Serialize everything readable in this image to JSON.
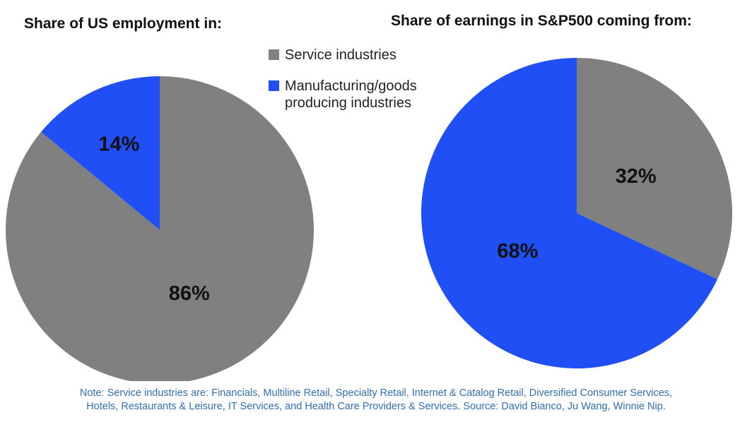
{
  "colors": {
    "service": "#808080",
    "manufacturing": "#1f4ff5"
  },
  "legend": {
    "items": [
      {
        "label": "Service industries",
        "color": "#808080"
      },
      {
        "label": "Manufacturing/goods producing industries",
        "color": "#1f4ff5"
      }
    ]
  },
  "chart_data": [
    {
      "type": "pie",
      "title": "Share of US employment in:",
      "categories": [
        "Service industries",
        "Manufacturing/goods producing industries"
      ],
      "values": [
        86,
        14
      ],
      "labels": [
        "86%",
        "14%"
      ]
    },
    {
      "type": "pie",
      "title": "Share of earnings in S&P500 coming from:",
      "categories": [
        "Service industries",
        "Manufacturing/goods producing industries"
      ],
      "values": [
        32,
        68
      ],
      "labels": [
        "32%",
        "68%"
      ]
    }
  ],
  "note": {
    "line1": "Note: Service industries are: Financials, Multiline Retail, Specialty Retail, Internet & Catalog Retail, Diversified Consumer Services,",
    "line2": "Hotels, Restaurants & Leisure, IT Services, and Health Care Providers & Services. Source: David Bianco, Ju Wang, Winnie Nip."
  }
}
